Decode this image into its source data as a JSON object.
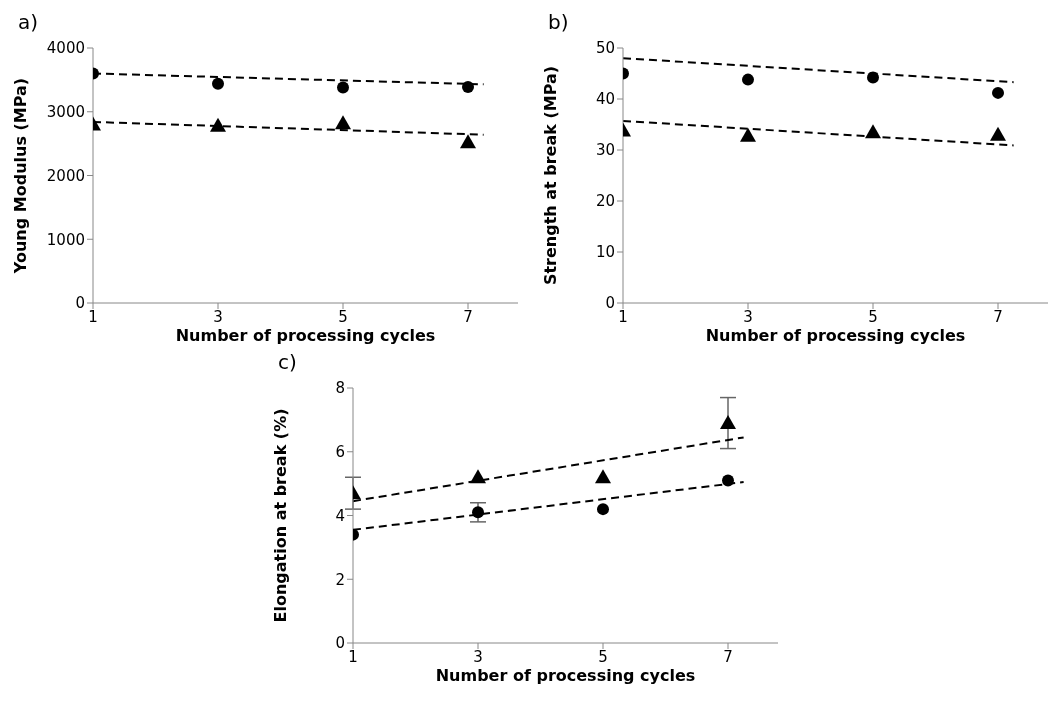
{
  "chart_data": [
    {
      "type": "scatter",
      "title": "a)",
      "xlabel": "Number of processing cycles",
      "ylabel": "Young Modulus (MPa)",
      "xlim": [
        1,
        7.8
      ],
      "xticks": [
        1,
        3,
        5,
        7
      ],
      "ylim": [
        0,
        4000
      ],
      "yticks": [
        0,
        1000,
        2000,
        3000,
        4000
      ],
      "grid": false,
      "legend": false,
      "series": [
        {
          "marker": "circle",
          "color": "#000000",
          "x": [
            1,
            3,
            5,
            7
          ],
          "values": [
            3600,
            3440,
            3380,
            3390
          ]
        },
        {
          "marker": "triangle",
          "color": "#000000",
          "x": [
            1,
            3,
            5,
            7
          ],
          "values": [
            2800,
            2780,
            2820,
            2520
          ]
        },
        {
          "type": "line",
          "marker": "none",
          "line_style": "dashed",
          "color": "#000000",
          "x": [
            1,
            7.25
          ],
          "values": [
            3600,
            3430
          ]
        },
        {
          "type": "line",
          "marker": "none",
          "line_style": "dashed",
          "color": "#000000",
          "x": [
            1,
            7.25
          ],
          "values": [
            2840,
            2640
          ]
        }
      ]
    },
    {
      "type": "scatter",
      "title": "b)",
      "xlabel": "Number of processing cycles",
      "ylabel": "Strength at break (MPa)",
      "xlim": [
        1,
        7.8
      ],
      "xticks": [
        1,
        3,
        5,
        7
      ],
      "ylim": [
        0,
        50
      ],
      "yticks": [
        0,
        10,
        20,
        30,
        40,
        50
      ],
      "grid": false,
      "legend": false,
      "series": [
        {
          "marker": "circle",
          "color": "#000000",
          "x": [
            1,
            3,
            5,
            7
          ],
          "values": [
            45,
            43.8,
            44.2,
            41.2
          ]
        },
        {
          "marker": "triangle",
          "color": "#000000",
          "x": [
            1,
            3,
            5,
            7
          ],
          "values": [
            33.8,
            32.8,
            33.5,
            33
          ]
        },
        {
          "type": "line",
          "marker": "none",
          "line_style": "dashed",
          "color": "#000000",
          "x": [
            1,
            7.25
          ],
          "values": [
            48,
            43.3
          ]
        },
        {
          "type": "line",
          "marker": "none",
          "line_style": "dashed",
          "color": "#000000",
          "x": [
            1,
            7.25
          ],
          "values": [
            35.7,
            30.9
          ]
        }
      ]
    },
    {
      "type": "scatter",
      "title": "c)",
      "xlabel": "Number of processing cycles",
      "ylabel": "Elongation at break (%)",
      "xlim": [
        1,
        7.8
      ],
      "xticks": [
        1,
        3,
        5,
        7
      ],
      "ylim": [
        0,
        8
      ],
      "yticks": [
        0,
        2,
        4,
        6,
        8
      ],
      "grid": false,
      "legend": false,
      "series": [
        {
          "marker": "circle",
          "color": "#000000",
          "x": [
            1,
            3,
            5,
            7
          ],
          "values": [
            3.4,
            4.1,
            4.2,
            5.1
          ],
          "errors": [
            null,
            0.3,
            null,
            null
          ]
        },
        {
          "marker": "triangle",
          "color": "#000000",
          "x": [
            1,
            3,
            5,
            7
          ],
          "values": [
            4.7,
            5.2,
            5.2,
            6.9
          ],
          "errors": [
            0.5,
            null,
            null,
            0.8
          ]
        },
        {
          "type": "line",
          "marker": "none",
          "line_style": "dashed",
          "color": "#000000",
          "x": [
            1,
            7.25
          ],
          "values": [
            4.45,
            6.45
          ]
        },
        {
          "type": "line",
          "marker": "none",
          "line_style": "dashed",
          "color": "#000000",
          "x": [
            1,
            7.25
          ],
          "values": [
            3.55,
            5.05
          ]
        }
      ]
    }
  ]
}
